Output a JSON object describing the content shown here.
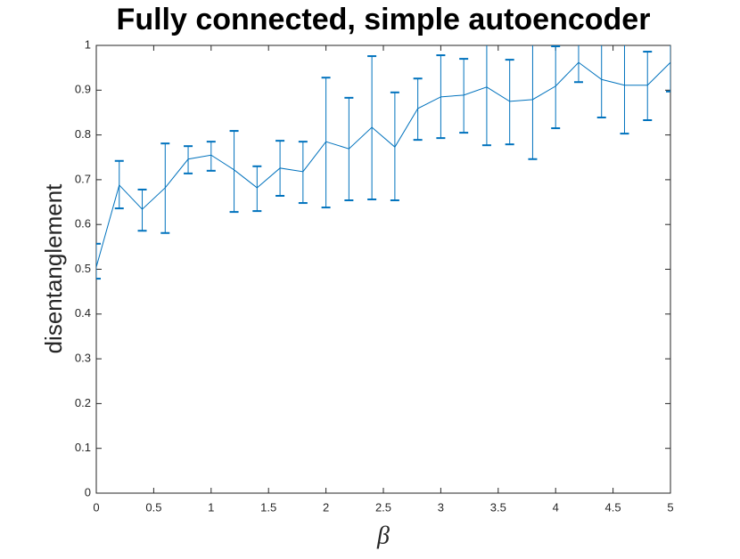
{
  "chart_data": {
    "type": "errorbar-line",
    "title": "Fully connected, simple autoencoder",
    "x_label": "β",
    "y_label": "disentanglement",
    "x": [
      0,
      0.2,
      0.4,
      0.6,
      0.8,
      1.0,
      1.2,
      1.4,
      1.6,
      1.8,
      2.0,
      2.2,
      2.4,
      2.6,
      2.8,
      3.0,
      3.2,
      3.4,
      3.6,
      3.8,
      4.0,
      4.2,
      4.4,
      4.6,
      4.8,
      5.0
    ],
    "series": [
      {
        "color": "#0072bd",
        "values": [
          0.505,
          0.688,
          0.634,
          0.682,
          0.746,
          0.755,
          0.722,
          0.682,
          0.726,
          0.718,
          0.785,
          0.769,
          0.817,
          0.773,
          0.859,
          0.885,
          0.889,
          0.907,
          0.875,
          0.879,
          0.909,
          0.962,
          0.924,
          0.911,
          0.911,
          0.962
        ],
        "lower": [
          0.479,
          0.636,
          0.586,
          0.581,
          0.714,
          0.72,
          0.628,
          0.63,
          0.664,
          0.648,
          0.638,
          0.654,
          0.656,
          0.654,
          0.789,
          0.793,
          0.805,
          0.777,
          0.779,
          0.746,
          0.815,
          0.918,
          0.839,
          0.803,
          0.833,
          0.897
        ],
        "upper": [
          0.557,
          0.742,
          0.678,
          0.781,
          0.775,
          0.785,
          0.809,
          0.73,
          0.787,
          0.785,
          0.928,
          0.883,
          0.976,
          0.895,
          0.926,
          0.978,
          0.97,
          1.03,
          0.968,
          1.02,
          0.998,
          1.005,
          1.01,
          1.02,
          0.986,
          1.03
        ]
      }
    ],
    "xlim": [
      0,
      5
    ],
    "ylim": [
      0,
      1
    ],
    "xticks": [
      0,
      0.5,
      1,
      1.5,
      2,
      2.5,
      3,
      3.5,
      4,
      4.5,
      5
    ],
    "yticks": [
      0,
      0.1,
      0.2,
      0.3,
      0.4,
      0.5,
      0.6,
      0.7,
      0.8,
      0.9,
      1
    ],
    "grid": false
  }
}
